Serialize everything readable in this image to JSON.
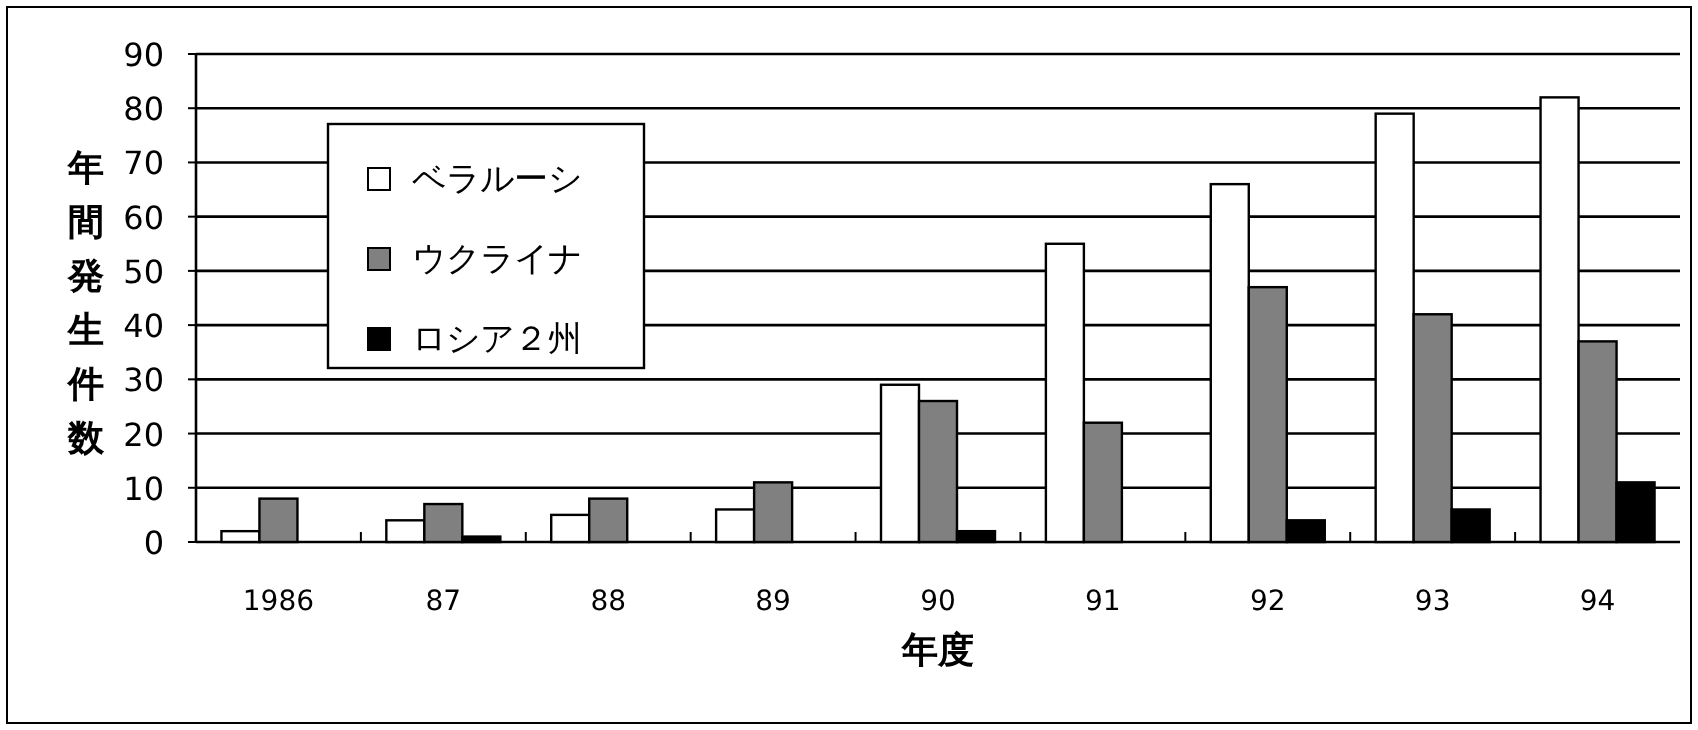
{
  "chart_data": {
    "type": "bar",
    "xlabel": "年度",
    "ylabel": "年間発生件数",
    "categories": [
      "1986",
      "87",
      "88",
      "89",
      "90",
      "91",
      "92",
      "93",
      "94"
    ],
    "series": [
      {
        "name": "ベラルーシ",
        "color": "#ffffff",
        "values": [
          2,
          4,
          5,
          6,
          29,
          55,
          66,
          79,
          82
        ]
      },
      {
        "name": "ウクライナ",
        "color": "#808080",
        "values": [
          8,
          7,
          8,
          11,
          26,
          22,
          47,
          42,
          37
        ]
      },
      {
        "name": "ロシア２州",
        "color": "#000000",
        "values": [
          0,
          1,
          0,
          0,
          2,
          0,
          4,
          6,
          11
        ]
      }
    ],
    "ylim": [
      0,
      90
    ],
    "yticks": [
      0,
      10,
      20,
      30,
      40,
      50,
      60,
      70,
      80,
      90
    ],
    "grid": "y",
    "legend": "top left"
  }
}
